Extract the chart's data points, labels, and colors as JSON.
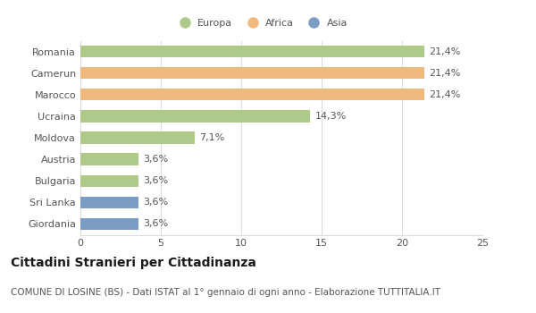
{
  "categories": [
    "Romania",
    "Camerun",
    "Marocco",
    "Ucraina",
    "Moldova",
    "Austria",
    "Bulgaria",
    "Sri Lanka",
    "Giordania"
  ],
  "values": [
    21.4,
    21.4,
    21.4,
    14.3,
    7.1,
    3.6,
    3.6,
    3.6,
    3.6
  ],
  "labels": [
    "21,4%",
    "21,4%",
    "21,4%",
    "14,3%",
    "7,1%",
    "3,6%",
    "3,6%",
    "3,6%",
    "3,6%"
  ],
  "colors": [
    "#aec98a",
    "#f0b97d",
    "#f0b97d",
    "#aec98a",
    "#aec98a",
    "#aec98a",
    "#aec98a",
    "#7b9dc4",
    "#7b9dc4"
  ],
  "legend_labels": [
    "Europa",
    "Africa",
    "Asia"
  ],
  "legend_colors": [
    "#aec98a",
    "#f0b97d",
    "#7b9dc4"
  ],
  "xlim": [
    0,
    25
  ],
  "xticks": [
    0,
    5,
    10,
    15,
    20,
    25
  ],
  "title": "Cittadini Stranieri per Cittadinanza",
  "subtitle": "COMUNE DI LOSINE (BS) - Dati ISTAT al 1° gennaio di ogni anno - Elaborazione TUTTITALIA.IT",
  "title_fontsize": 10,
  "subtitle_fontsize": 7.5,
  "label_fontsize": 8,
  "tick_fontsize": 8,
  "background_color": "#ffffff",
  "bar_height": 0.55,
  "grid_color": "#dddddd"
}
